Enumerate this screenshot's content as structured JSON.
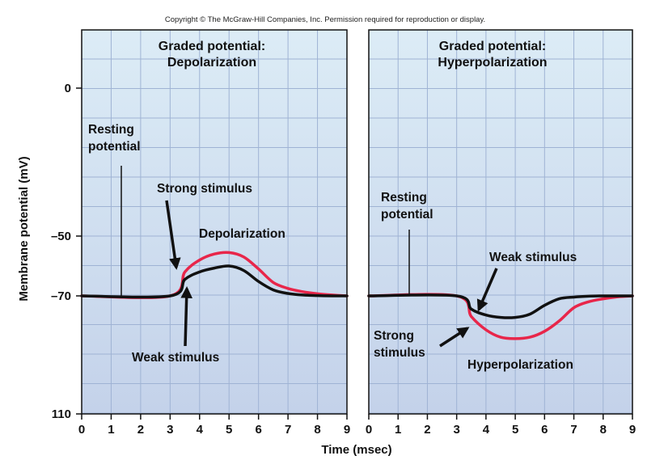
{
  "copyright": "Copyright © The McGraw-Hill Companies, Inc. Permission required for reproduction or display.",
  "colors": {
    "strong": "#e8264a",
    "weak": "#111111",
    "bg_top": "#dcecf6",
    "bg_bottom": "#c4d2ea"
  },
  "chart_data": [
    {
      "type": "line",
      "title_lines": [
        "Graded potential:",
        "Depolarization"
      ],
      "ylabel": "Membrane potential (mV)",
      "xlabel": "Time (msec)",
      "xlim": [
        0,
        9
      ],
      "x_ticks": [
        "0",
        "1",
        "2",
        "3",
        "4",
        "5",
        "6",
        "7",
        "8",
        "9"
      ],
      "y_ticks": [
        {
          "value": 0,
          "label": "0"
        },
        {
          "value": -50,
          "label": "–50"
        },
        {
          "value": -70,
          "label": "–70"
        },
        {
          "value": -110,
          "label": "110"
        }
      ],
      "resting_level": -70,
      "series": [
        {
          "name": "Strong stimulus",
          "color_key": "strong",
          "x": [
            0,
            3,
            3.5,
            4,
            4.5,
            5,
            5.5,
            6,
            6.5,
            7,
            7.5,
            8,
            8.5,
            9
          ],
          "y": [
            -70,
            -70,
            -62,
            -58,
            -56,
            -55.5,
            -57,
            -61,
            -65.5,
            -67.5,
            -68.6,
            -69.3,
            -69.7,
            -70
          ]
        },
        {
          "name": "Weak stimulus",
          "color_key": "weak",
          "x": [
            0,
            3,
            3.5,
            4,
            4.5,
            5,
            5.5,
            6,
            6.5,
            7,
            7.5,
            8,
            8.5,
            9
          ],
          "y": [
            -70,
            -70,
            -64.5,
            -62,
            -60.7,
            -60,
            -61.5,
            -65.2,
            -68,
            -69.2,
            -69.7,
            -69.9,
            -70,
            -70
          ]
        }
      ],
      "annotations": {
        "resting": [
          "Resting",
          "potential"
        ],
        "strong": "Strong stimulus",
        "curve": "Depolarization",
        "weak": "Weak stimulus"
      }
    },
    {
      "type": "line",
      "title_lines": [
        "Graded potential:",
        "Hyperpolarization"
      ],
      "xlabel": "Time (msec)",
      "xlim": [
        0,
        9
      ],
      "x_ticks": [
        "0",
        "1",
        "2",
        "3",
        "4",
        "5",
        "6",
        "7",
        "8",
        "9"
      ],
      "resting_level": -70,
      "series": [
        {
          "name": "Strong stimulus",
          "color_key": "strong",
          "x": [
            0,
            3,
            3.5,
            4,
            4.5,
            5,
            5.5,
            6,
            6.5,
            7,
            7.5,
            8,
            8.5,
            9
          ],
          "y": [
            -70,
            -70,
            -77,
            -81.5,
            -84,
            -84.5,
            -84,
            -82,
            -78.5,
            -74,
            -72,
            -71,
            -70.3,
            -70
          ]
        },
        {
          "name": "Weak stimulus",
          "color_key": "weak",
          "x": [
            0,
            3,
            3.5,
            4,
            4.5,
            5,
            5.5,
            6,
            6.5,
            7,
            7.5,
            8,
            8.5,
            9
          ],
          "y": [
            -70,
            -70,
            -74.5,
            -76.5,
            -77.3,
            -77.3,
            -76.2,
            -73.2,
            -71,
            -70.4,
            -70.1,
            -70,
            -70,
            -70
          ]
        }
      ],
      "annotations": {
        "resting": [
          "Resting",
          "potential"
        ],
        "weak": "Weak stimulus",
        "strong": [
          "Strong",
          "stimulus"
        ],
        "curve": "Hyperpolarization"
      }
    }
  ]
}
